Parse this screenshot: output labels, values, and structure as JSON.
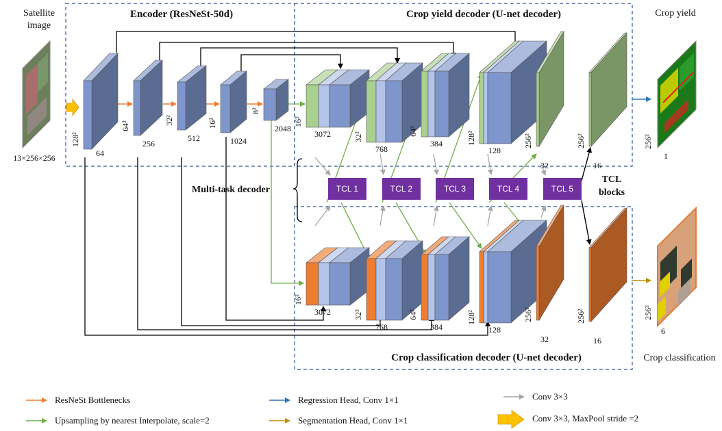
{
  "input": {
    "title_line1": "Satellite",
    "title_line2": "image",
    "dims": "13×256×256"
  },
  "encoder": {
    "title": "Encoder (ResNeSt-50d)",
    "blocks": [
      {
        "size": "128²",
        "ch": "64"
      },
      {
        "size": "64²",
        "ch": "256"
      },
      {
        "size": "32²",
        "ch": "512"
      },
      {
        "size": "16²",
        "ch": "1024"
      },
      {
        "size": "8²",
        "ch": "2048"
      }
    ]
  },
  "yield_decoder": {
    "title": "Crop yield decoder (U-net decoder)",
    "blocks": [
      {
        "size": "16²",
        "ch": "3072"
      },
      {
        "size": "32²",
        "ch": "768"
      },
      {
        "size": "64²",
        "ch": "384"
      },
      {
        "size": "128²",
        "ch": "128"
      },
      {
        "size": "256²",
        "ch": "32"
      },
      {
        "size": "256²",
        "ch": "16"
      }
    ]
  },
  "class_decoder": {
    "title": "Crop classification decoder (U-net decoder)",
    "blocks": [
      {
        "size": "16²",
        "ch": "3072"
      },
      {
        "size": "32²",
        "ch": "768"
      },
      {
        "size": "64²",
        "ch": "384"
      },
      {
        "size": "128²",
        "ch": "128"
      },
      {
        "size": "256²",
        "ch": "32"
      },
      {
        "size": "256²",
        "ch": "16"
      }
    ]
  },
  "multitask": {
    "label": "Multi-task decoder"
  },
  "tcl": {
    "blocks": [
      "TCL 1",
      "TCL 2",
      "TCL 3",
      "TCL 4",
      "TCL 5"
    ],
    "label_line1": "TCL",
    "label_line2": "blocks"
  },
  "outputs": {
    "yield": {
      "title": "Crop yield",
      "size": "256²",
      "ch": "1"
    },
    "classification": {
      "title": "Crop classification",
      "size": "256²",
      "ch": "6"
    }
  },
  "legend": [
    {
      "label": "ResNeSt Bottlenecks",
      "color": "#ed7d31",
      "kind": "arrow"
    },
    {
      "label": "Upsampling by nearest Interpolate, scale=2",
      "color": "#70ad47",
      "kind": "arrow"
    },
    {
      "label": "Regression Head, Conv 1×1",
      "color": "#2e75b6",
      "kind": "arrow"
    },
    {
      "label": "Segmentation Head, Conv 1×1",
      "color": "#bf9000",
      "kind": "arrow"
    },
    {
      "label": "Conv 3×3",
      "color": "#a6a6a6",
      "kind": "arrow"
    },
    {
      "label": "Conv 3×3, MaxPool stride =2",
      "color": "#ffc000",
      "kind": "block"
    }
  ],
  "colors": {
    "blue_face": "#7f96cc",
    "blue_side": "#4b63a3",
    "blue_top": "#b4c4e8",
    "green": "#a9d08e",
    "orange": "#ed7d31",
    "purple": "#7030a0",
    "dash": "#2f5597"
  }
}
